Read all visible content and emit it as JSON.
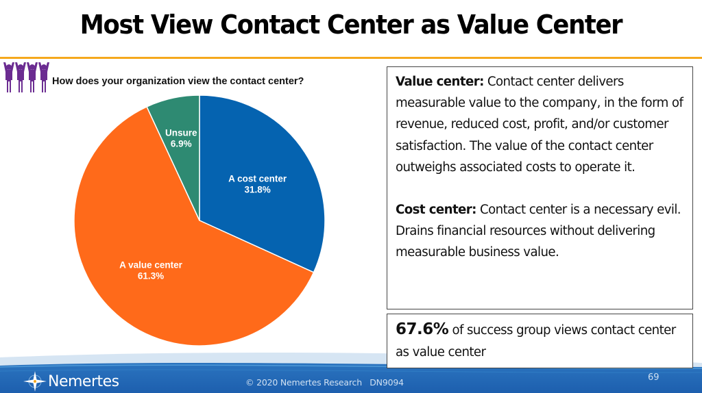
{
  "slide": {
    "title": "Most View Contact Center as Value Center",
    "question": "How does your organization view the contact center?",
    "icon": "people-cheering-icon",
    "accent_color": "#f5a81c"
  },
  "definitions": {
    "value_center": {
      "term": "Value center:",
      "text": " Contact center delivers measurable value to the company, in the form of revenue, reduced cost, profit, and/or customer satisfaction. The value of the contact center outweighs associated costs to operate it."
    },
    "cost_center": {
      "term": "Cost center:",
      "text": " Contact center is a necessary evil. Drains financial resources without delivering measurable business value."
    }
  },
  "callout": {
    "stat": "67.6%",
    "text": " of success group views contact center as value center"
  },
  "footer": {
    "brand": "Nemertes",
    "logo_icon": "compass-star-icon",
    "copyright": "© 2020 Nemertes Research   DN9094",
    "page_number": "69"
  },
  "chart_data": {
    "type": "pie",
    "title": "How does your organization view the contact center?",
    "start_angle_deg": 0,
    "direction": "clockwise",
    "slices": [
      {
        "label": "A cost center",
        "value": 31.8,
        "display": "31.8%",
        "color": "#0563b0"
      },
      {
        "label": "A value center",
        "value": 61.3,
        "display": "61.3%",
        "color": "#ff6a1a"
      },
      {
        "label": "Unsure",
        "value": 6.9,
        "display": "6.9%",
        "color": "#2e8a72"
      }
    ],
    "legend": "none",
    "data_labels": "inside"
  }
}
